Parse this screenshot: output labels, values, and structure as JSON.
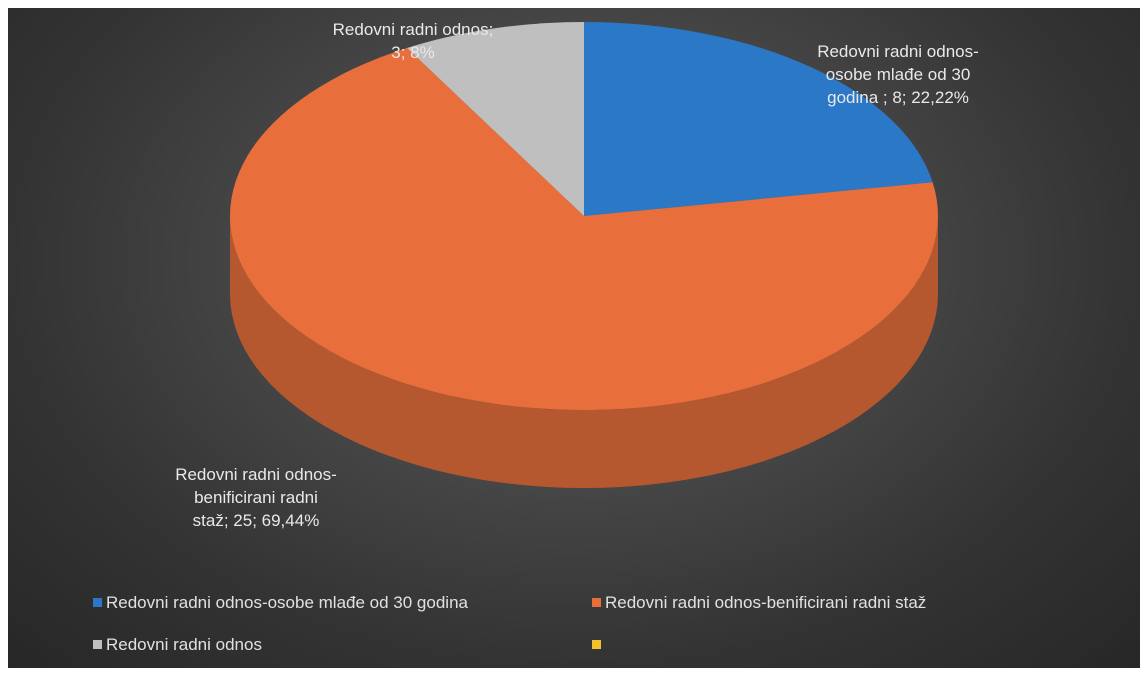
{
  "chart_data": {
    "type": "pie",
    "title": "",
    "series": [
      {
        "values": [
          8,
          25,
          3,
          0
        ]
      }
    ],
    "categories": [
      "Redovni radni odnos-osobe mlađe od 30 godina",
      "Redovni radni odnos-benificirani radni staž",
      "Redovni radni odnos",
      ""
    ],
    "percentages": [
      "22,22%",
      "69,44%",
      "8%",
      ""
    ],
    "colors": [
      "#2a78c6",
      "#e86f3c",
      "#bfbfbf",
      "#f2c12e"
    ],
    "data_labels": [
      "Redovni radni odnos-\nosobe mlađe od 30\ngodina ; 8; 22,22%",
      "Redovni radni odnos-\nbenificirani radni\nstaž; 25; 69,44%",
      "Redovni radni odnos;\n3; 8%",
      ""
    ],
    "legend": {
      "position": "bottom",
      "entries": [
        "Redovni radni odnos-osobe mlađe od 30 godina",
        "Redovni radni odnos-benificirani radni staž",
        "Redovni radni odnos",
        ""
      ]
    },
    "style": "3d",
    "background": "#3e3e3e"
  }
}
